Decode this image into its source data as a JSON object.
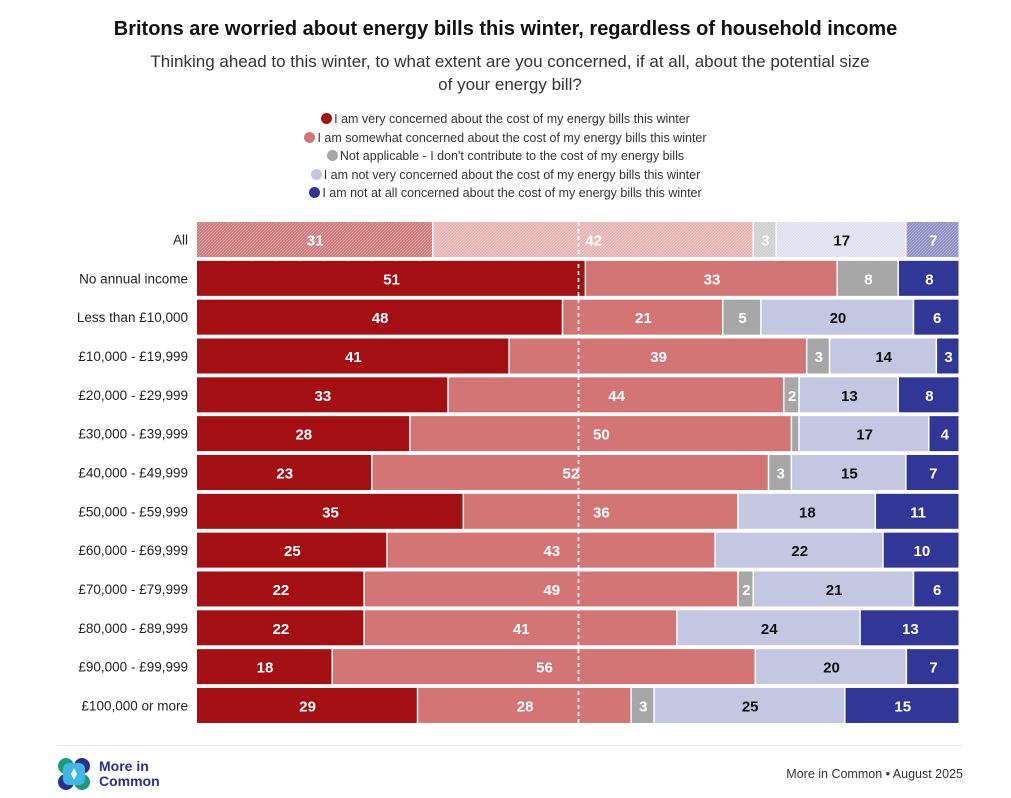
{
  "chart_data": {
    "type": "bar",
    "orientation": "horizontal",
    "stacked": true,
    "title": "Britons are worried about energy bills this winter, regardless of household income",
    "subtitle": "Thinking ahead to this winter, to what extent are you concerned, if at all, about the potential size of your energy bill?",
    "legend_position": "top",
    "categories": [
      "All",
      "No annual income",
      "Less than £10,000",
      "£10,000 - £19,999",
      "£20,000 - £29,999",
      "£30,000 - £39,999",
      "£40,000 - £49,999",
      "£50,000 - £59,999",
      "£60,000 - £69,999",
      "£70,000 - £79,999",
      "£80,000 - £89,999",
      "£90,000 - £99,999",
      "£100,000 or more"
    ],
    "series": [
      {
        "name": "I am very concerned about the cost of my energy bills this winter",
        "color": "#a30f12",
        "values": [
          31,
          51,
          48,
          41,
          33,
          28,
          23,
          35,
          25,
          22,
          22,
          18,
          29
        ]
      },
      {
        "name": "I am somewhat concerned about the cost of my energy bills this winter",
        "color": "#d47575",
        "values": [
          42,
          33,
          21,
          39,
          44,
          50,
          52,
          36,
          43,
          49,
          41,
          56,
          28
        ]
      },
      {
        "name": "Not applicable - I don't contribute to the cost of my energy bills",
        "color": "#a7a7a7",
        "values": [
          3,
          8,
          5,
          3,
          2,
          1,
          3,
          0,
          0,
          2,
          0,
          0,
          3
        ]
      },
      {
        "name": "I am not very concerned about the cost of my energy bills this winter",
        "color": "#c4c7e2",
        "values": [
          17,
          0,
          20,
          14,
          13,
          17,
          15,
          18,
          22,
          21,
          24,
          20,
          25
        ]
      },
      {
        "name": "I am not at all concerned about the cost of my energy bills this winter",
        "color": "#313796",
        "values": [
          7,
          8,
          6,
          3,
          8,
          4,
          7,
          11,
          10,
          6,
          13,
          7,
          15
        ]
      }
    ],
    "reference_line": 50,
    "xlim": [
      0,
      100
    ]
  },
  "footer": {
    "logo_text": "More in Common",
    "source": "More in Common • August 2025"
  }
}
